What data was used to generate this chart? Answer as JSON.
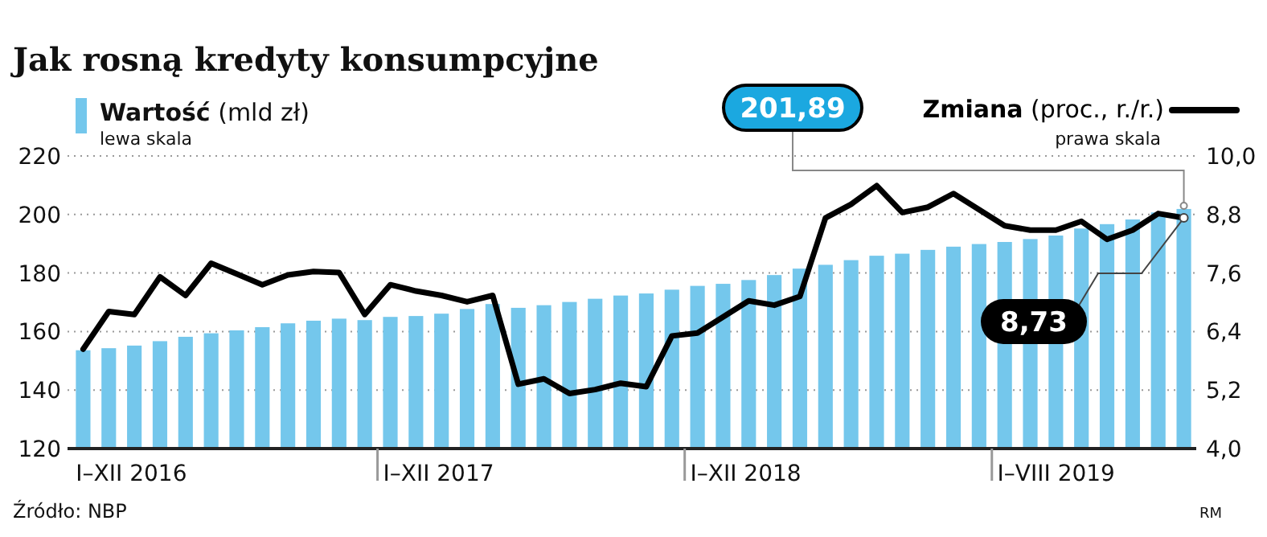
{
  "chart_data": {
    "type": "bar",
    "title": "Jak rosną kredyty konsumpcyjne",
    "ylabel": "lewa skala",
    "y2label": "prawa skala",
    "categories": [
      null,
      null,
      null,
      null,
      null,
      null,
      null,
      null,
      null,
      null,
      null,
      null,
      null,
      null,
      null,
      null,
      null,
      null,
      null,
      null,
      null,
      null,
      null,
      null,
      null,
      null,
      null,
      null,
      null,
      null,
      null,
      null,
      null,
      null,
      null,
      null,
      null,
      null,
      null,
      null,
      null,
      null,
      null,
      null
    ],
    "series": [
      {
        "name": "Wartość (mld zł)",
        "color": "#74c7ec",
        "values": [
          153.6,
          154.3,
          155.2,
          156.7,
          158.2,
          159.4,
          160.4,
          161.5,
          162.8,
          163.7,
          164.4,
          163.9,
          165,
          165.3,
          166.1,
          167.7,
          169.4,
          168.1,
          169,
          170.1,
          171.2,
          172.3,
          173,
          174.3,
          175.6,
          176.3,
          177.6,
          179.3,
          181.5,
          182.8,
          184.4,
          185.9,
          186.6,
          187.9,
          189,
          189.9,
          190.6,
          191.6,
          192.8,
          195.2,
          196.7,
          198.3,
          200.7,
          201.89
        ],
        "value_labels": [
          null,
          null,
          null,
          null,
          null,
          null,
          null,
          null,
          null,
          null,
          null,
          null,
          null,
          null,
          null,
          null,
          null,
          null,
          null,
          null,
          null,
          null,
          null,
          null,
          null,
          null,
          null,
          null,
          null,
          null,
          null,
          null,
          null,
          null,
          null,
          null,
          null,
          null,
          null,
          null,
          null,
          null,
          null,
          "201,89"
        ]
      },
      {
        "name": "Zmiana (proc., r./r.)",
        "type": "line",
        "axis": "y2",
        "color": "#000000",
        "values": [
          6.04,
          6.81,
          6.75,
          7.52,
          7.14,
          7.8,
          7.58,
          7.36,
          7.56,
          7.63,
          7.61,
          6.75,
          7.36,
          7.23,
          7.14,
          7.01,
          7.14,
          5.32,
          5.43,
          5.13,
          5.21,
          5.34,
          5.27,
          6.31,
          6.37,
          6.7,
          7.03,
          6.94,
          7.12,
          8.73,
          9.01,
          9.39,
          8.84,
          8.95,
          9.23,
          8.9,
          8.57,
          8.48,
          8.48,
          8.66,
          8.29,
          8.48,
          8.82,
          8.73
        ],
        "value_labels": [
          null,
          null,
          null,
          null,
          null,
          null,
          null,
          null,
          null,
          null,
          null,
          null,
          null,
          null,
          null,
          null,
          null,
          null,
          null,
          null,
          null,
          null,
          null,
          null,
          null,
          null,
          null,
          null,
          null,
          null,
          null,
          null,
          null,
          null,
          null,
          null,
          null,
          null,
          null,
          null,
          null,
          null,
          null,
          "8,73"
        ]
      }
    ],
    "ylim": [
      120,
      220
    ],
    "yticks": [
      120,
      140,
      160,
      180,
      200,
      220
    ],
    "y2lim": [
      4,
      10
    ],
    "y2ticks": [
      {
        "value": 4,
        "label": "4,0"
      },
      {
        "value": 5.2,
        "label": "5,2"
      },
      {
        "value": 6.4,
        "label": "6,4"
      },
      {
        "value": 7.6,
        "label": "7,6"
      },
      {
        "value": 8.8,
        "label": "8,8"
      },
      {
        "value": 10,
        "label": "10,0"
      }
    ],
    "grid": "y",
    "legend": "top",
    "marker": "none",
    "line_style": "solid",
    "annotations": [
      "I–XII 2016",
      "I–XII 2017",
      "I–XII 2018",
      "I–VIII 2019",
      "Źródło: NBP",
      "RM"
    ]
  }
}
